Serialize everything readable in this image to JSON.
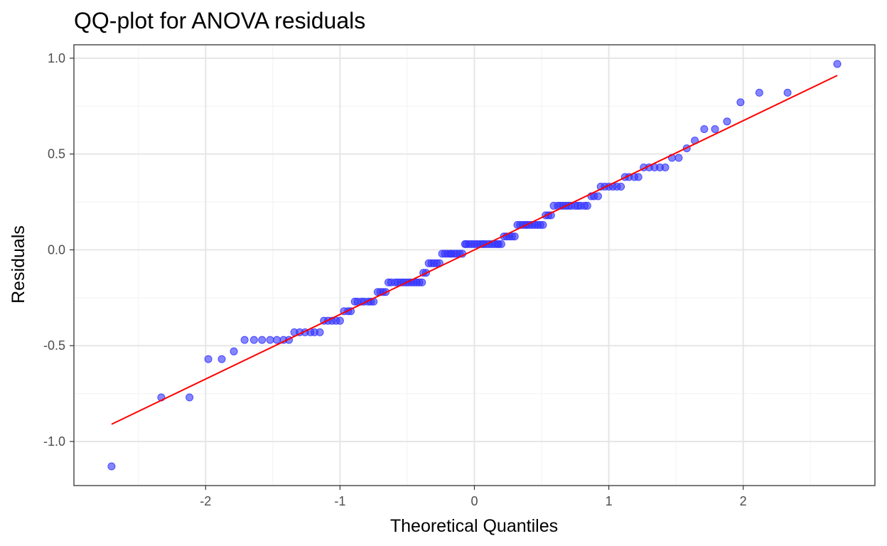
{
  "chart_data": {
    "type": "scatter",
    "title": "QQ-plot for ANOVA residuals",
    "xlabel": "Theoretical Quantiles",
    "ylabel": "Residuals",
    "xlim": [
      -2.98,
      2.98
    ],
    "ylim": [
      -1.23,
      1.07
    ],
    "x_ticks": [
      -2,
      -1,
      0,
      1,
      2
    ],
    "x_tick_labels": [
      "-2",
      "-1",
      "0",
      "1",
      "2"
    ],
    "y_ticks": [
      -1.0,
      -0.5,
      0.0,
      0.5,
      1.0
    ],
    "y_tick_labels": [
      "-1.0",
      "-0.5",
      "0.0",
      "0.5",
      "1.0"
    ],
    "grid": true,
    "point_color": "#3333ff",
    "point_opacity": 0.6,
    "line_color": "#ff0000",
    "reference_line": {
      "x": [
        -2.7,
        2.7
      ],
      "y": [
        -0.91,
        0.91
      ]
    },
    "series": [
      {
        "name": "residuals",
        "points": [
          [
            -2.7,
            -1.13
          ],
          [
            -2.33,
            -0.77
          ],
          [
            -2.12,
            -0.77
          ],
          [
            -1.98,
            -0.57
          ],
          [
            -1.88,
            -0.57
          ],
          [
            -1.79,
            -0.53
          ],
          [
            -1.71,
            -0.47
          ],
          [
            -1.64,
            -0.47
          ],
          [
            -1.58,
            -0.47
          ],
          [
            -1.52,
            -0.47
          ],
          [
            -1.47,
            -0.47
          ],
          [
            -1.42,
            -0.47
          ],
          [
            -1.38,
            -0.47
          ],
          [
            -1.34,
            -0.43
          ],
          [
            -1.3,
            -0.43
          ],
          [
            -1.26,
            -0.43
          ],
          [
            -1.22,
            -0.43
          ],
          [
            -1.19,
            -0.43
          ],
          [
            -1.15,
            -0.43
          ],
          [
            -1.12,
            -0.37
          ],
          [
            -1.09,
            -0.37
          ],
          [
            -1.06,
            -0.37
          ],
          [
            -1.03,
            -0.37
          ],
          [
            -1.0,
            -0.37
          ],
          [
            -0.97,
            -0.32
          ],
          [
            -0.94,
            -0.32
          ],
          [
            -0.92,
            -0.32
          ],
          [
            -0.89,
            -0.27
          ],
          [
            -0.87,
            -0.27
          ],
          [
            -0.84,
            -0.27
          ],
          [
            -0.82,
            -0.27
          ],
          [
            -0.79,
            -0.27
          ],
          [
            -0.77,
            -0.27
          ],
          [
            -0.75,
            -0.27
          ],
          [
            -0.72,
            -0.22
          ],
          [
            -0.7,
            -0.22
          ],
          [
            -0.68,
            -0.22
          ],
          [
            -0.66,
            -0.22
          ],
          [
            -0.64,
            -0.17
          ],
          [
            -0.62,
            -0.17
          ],
          [
            -0.59,
            -0.17
          ],
          [
            -0.57,
            -0.17
          ],
          [
            -0.55,
            -0.17
          ],
          [
            -0.53,
            -0.17
          ],
          [
            -0.51,
            -0.17
          ],
          [
            -0.49,
            -0.17
          ],
          [
            -0.47,
            -0.17
          ],
          [
            -0.45,
            -0.17
          ],
          [
            -0.43,
            -0.17
          ],
          [
            -0.41,
            -0.17
          ],
          [
            -0.39,
            -0.17
          ],
          [
            -0.38,
            -0.12
          ],
          [
            -0.36,
            -0.12
          ],
          [
            -0.34,
            -0.07
          ],
          [
            -0.32,
            -0.07
          ],
          [
            -0.3,
            -0.07
          ],
          [
            -0.28,
            -0.07
          ],
          [
            -0.26,
            -0.07
          ],
          [
            -0.24,
            -0.02
          ],
          [
            -0.22,
            -0.02
          ],
          [
            -0.2,
            -0.02
          ],
          [
            -0.18,
            -0.02
          ],
          [
            -0.17,
            -0.02
          ],
          [
            -0.15,
            -0.02
          ],
          [
            -0.13,
            -0.02
          ],
          [
            -0.11,
            -0.02
          ],
          [
            -0.09,
            -0.02
          ],
          [
            -0.07,
            0.03
          ],
          [
            -0.06,
            0.03
          ],
          [
            -0.04,
            0.03
          ],
          [
            -0.02,
            0.03
          ],
          [
            0.0,
            0.03
          ],
          [
            0.02,
            0.03
          ],
          [
            0.04,
            0.03
          ],
          [
            0.06,
            0.03
          ],
          [
            0.07,
            0.03
          ],
          [
            0.09,
            0.03
          ],
          [
            0.11,
            0.03
          ],
          [
            0.13,
            0.03
          ],
          [
            0.15,
            0.03
          ],
          [
            0.17,
            0.03
          ],
          [
            0.18,
            0.03
          ],
          [
            0.2,
            0.03
          ],
          [
            0.22,
            0.07
          ],
          [
            0.24,
            0.07
          ],
          [
            0.26,
            0.07
          ],
          [
            0.28,
            0.07
          ],
          [
            0.3,
            0.07
          ],
          [
            0.32,
            0.13
          ],
          [
            0.34,
            0.13
          ],
          [
            0.36,
            0.13
          ],
          [
            0.38,
            0.13
          ],
          [
            0.39,
            0.13
          ],
          [
            0.41,
            0.13
          ],
          [
            0.43,
            0.13
          ],
          [
            0.45,
            0.13
          ],
          [
            0.47,
            0.13
          ],
          [
            0.49,
            0.13
          ],
          [
            0.51,
            0.13
          ],
          [
            0.53,
            0.18
          ],
          [
            0.55,
            0.18
          ],
          [
            0.57,
            0.18
          ],
          [
            0.59,
            0.23
          ],
          [
            0.62,
            0.23
          ],
          [
            0.64,
            0.23
          ],
          [
            0.66,
            0.23
          ],
          [
            0.68,
            0.23
          ],
          [
            0.7,
            0.23
          ],
          [
            0.72,
            0.23
          ],
          [
            0.75,
            0.23
          ],
          [
            0.77,
            0.23
          ],
          [
            0.79,
            0.23
          ],
          [
            0.82,
            0.23
          ],
          [
            0.84,
            0.23
          ],
          [
            0.87,
            0.28
          ],
          [
            0.89,
            0.28
          ],
          [
            0.92,
            0.28
          ],
          [
            0.94,
            0.33
          ],
          [
            0.97,
            0.33
          ],
          [
            1.0,
            0.33
          ],
          [
            1.03,
            0.33
          ],
          [
            1.06,
            0.33
          ],
          [
            1.09,
            0.33
          ],
          [
            1.12,
            0.38
          ],
          [
            1.15,
            0.38
          ],
          [
            1.19,
            0.38
          ],
          [
            1.22,
            0.38
          ],
          [
            1.26,
            0.43
          ],
          [
            1.3,
            0.43
          ],
          [
            1.34,
            0.43
          ],
          [
            1.38,
            0.43
          ],
          [
            1.42,
            0.43
          ],
          [
            1.47,
            0.48
          ],
          [
            1.52,
            0.48
          ],
          [
            1.58,
            0.53
          ],
          [
            1.64,
            0.57
          ],
          [
            1.71,
            0.63
          ],
          [
            1.79,
            0.63
          ],
          [
            1.88,
            0.67
          ],
          [
            1.98,
            0.77
          ],
          [
            2.12,
            0.82
          ],
          [
            2.33,
            0.82
          ],
          [
            2.7,
            0.97
          ]
        ]
      }
    ]
  }
}
